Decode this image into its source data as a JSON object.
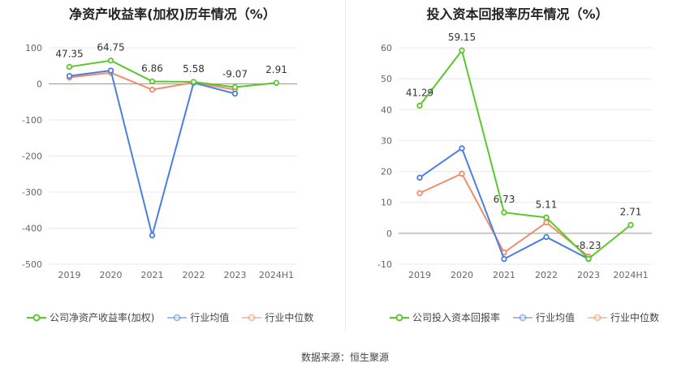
{
  "footer": {
    "source": "数据来源：恒生聚源"
  },
  "colors": {
    "company": "#5cc72c",
    "industry_avg": "#4a7fde",
    "industry_median": "#f28c6a",
    "grid": "#e8e8e8",
    "axis_text": "#666666"
  },
  "chart_data": [
    {
      "type": "line",
      "title": "净资产收益率(加权)历年情况（%）",
      "xlabel": "",
      "ylabel": "",
      "categories": [
        "2019",
        "2020",
        "2021",
        "2022",
        "2023",
        "2024H1"
      ],
      "ylim": [
        -500,
        100
      ],
      "yticks": [
        100,
        0,
        -100,
        -200,
        -300,
        -400,
        -500
      ],
      "grid": true,
      "legend_position": "bottom",
      "series": [
        {
          "name": "公司净资产收益率(加权)",
          "color": "#5cc72c",
          "values": [
            47.35,
            64.75,
            6.86,
            5.58,
            -9.07,
            2.91
          ],
          "labels": [
            "47.35",
            "64.75",
            "6.86",
            "5.58",
            "-9.07",
            "2.91"
          ]
        },
        {
          "name": "行业均值",
          "color": "#4a7fde",
          "values": [
            22,
            37,
            -420,
            3,
            -27,
            null
          ]
        },
        {
          "name": "行业中位数",
          "color": "#f28c6a",
          "values": [
            18,
            31,
            -16,
            4,
            -16,
            null
          ]
        }
      ]
    },
    {
      "type": "line",
      "title": "投入资本回报率历年情况（%）",
      "xlabel": "",
      "ylabel": "",
      "categories": [
        "2019",
        "2020",
        "2021",
        "2022",
        "2023",
        "2024H1"
      ],
      "ylim": [
        -10,
        60
      ],
      "yticks": [
        60,
        50,
        40,
        30,
        20,
        10,
        0,
        -10
      ],
      "grid": true,
      "legend_position": "bottom",
      "series": [
        {
          "name": "公司投入资本回报率",
          "color": "#5cc72c",
          "values": [
            41.29,
            59.15,
            6.73,
            5.11,
            -8.23,
            2.71
          ],
          "labels": [
            "41.29",
            "59.15",
            "6.73",
            "5.11",
            "-8.23",
            "2.71"
          ]
        },
        {
          "name": "行业均值",
          "color": "#4a7fde",
          "values": [
            18,
            27.5,
            -8.3,
            -1.2,
            -8.3,
            null
          ]
        },
        {
          "name": "行业中位数",
          "color": "#f28c6a",
          "values": [
            13,
            19.3,
            -6.2,
            3.5,
            -7.5,
            null
          ]
        }
      ]
    }
  ]
}
